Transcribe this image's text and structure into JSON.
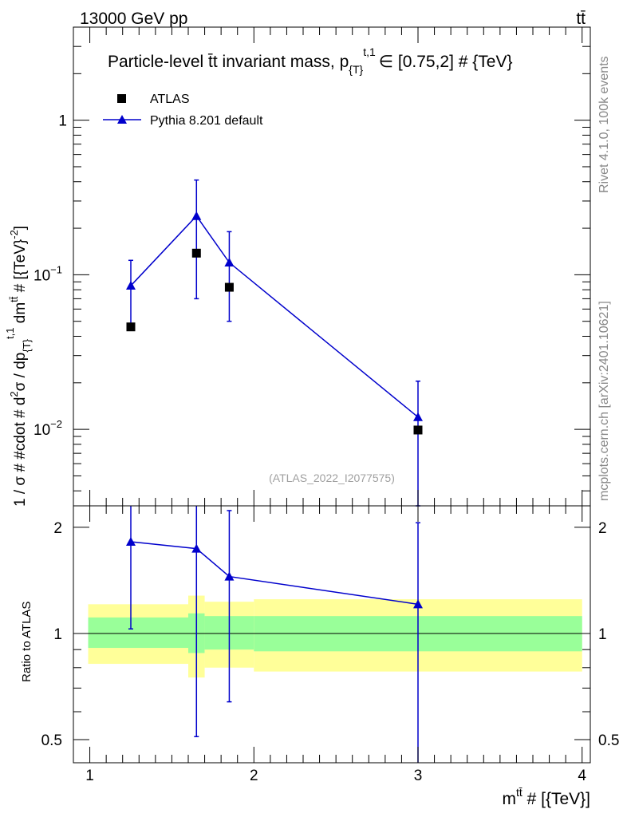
{
  "header": {
    "energy_label": "13000 GeV pp",
    "process_label": "tt̄"
  },
  "side_labels": {
    "rivet": "Rivet 4.1.0,  100k events",
    "mcplots": "mcplots.cern.ch [arXiv:2401.10621]"
  },
  "chart_data": [
    {
      "type": "scatter",
      "role": "main",
      "title": "Particle-level t̄t invariant mass, p_{T}^{t,1} ∈ [0.75,2] # {TeV}",
      "title_parts": {
        "main": "Particle-level t̄t invariant mass, p",
        "sub": "{T}",
        "sup": "t,1",
        "rest": "∈ [0.75,2] # {TeV}"
      },
      "ylabel": "1 / σ # #cdot # d²σ / dp_{T}^{t,1} dm^{tt̄} # [{TeV}⁻²]",
      "ylabel_parts": {
        "a": "1 / σ # #cdot # d",
        "a_sup": "2",
        "b": "σ / dp",
        "b_sub": "{T}",
        "b_sup": "t,1",
        "c": " dm",
        "c_sup": "tt̄",
        "d": " # [{TeV}",
        "d_sup": "-2",
        "e": "]"
      },
      "yscale": "log",
      "ylim": [
        0.0032,
        4.0
      ],
      "xlim": [
        0.9,
        4.05
      ],
      "y_ticks": [
        {
          "value": 1,
          "base": "1",
          "exp": ""
        },
        {
          "value": 0.1,
          "base": "10",
          "exp": "−1"
        },
        {
          "value": 0.01,
          "base": "10",
          "exp": "−2"
        }
      ],
      "series": [
        {
          "name": "ATLAS",
          "marker": "square",
          "color": "#000000",
          "points": [
            {
              "x": 1.25,
              "y": 0.046
            },
            {
              "x": 1.65,
              "y": 0.138
            },
            {
              "x": 1.85,
              "y": 0.083
            },
            {
              "x": 3.0,
              "y": 0.0099
            }
          ]
        },
        {
          "name": "Pythia 8.201 default",
          "marker": "triangle",
          "color": "#0000cc",
          "line": true,
          "points": [
            {
              "x": 1.25,
              "y": 0.085,
              "ylo": 0.046,
              "yhi": 0.124
            },
            {
              "x": 1.65,
              "y": 0.24,
              "ylo": 0.07,
              "yhi": 0.41
            },
            {
              "x": 1.85,
              "y": 0.12,
              "ylo": 0.05,
              "yhi": 0.19
            },
            {
              "x": 3.0,
              "y": 0.012,
              "ylo": 0.0032,
              "yhi": 0.0205
            }
          ]
        }
      ],
      "annotation": "(ATLAS_2022_I2077575)"
    },
    {
      "type": "scatter",
      "role": "ratio",
      "ylabel": "Ratio to ATLAS",
      "xlabel": "m^{tt̄} # [{TeV}]",
      "xlabel_parts": {
        "a": "m",
        "sup": "tt̄",
        "b": " # [{TeV}]"
      },
      "yscale": "log",
      "ylim": [
        0.43,
        2.3
      ],
      "xlim": [
        0.9,
        4.05
      ],
      "x_ticks": [
        1,
        2,
        3,
        4
      ],
      "y_ticks": [
        0.5,
        1,
        2
      ],
      "bands": [
        {
          "x0": 0.9,
          "x1": 1.6,
          "g_lo": 0.91,
          "g_hi": 1.11,
          "y_lo": 0.82,
          "y_hi": 1.21
        },
        {
          "x0": 1.6,
          "x1": 1.7,
          "g_lo": 0.88,
          "g_hi": 1.14,
          "y_lo": 0.75,
          "y_hi": 1.28
        },
        {
          "x0": 1.7,
          "x1": 2.0,
          "g_lo": 0.9,
          "g_hi": 1.12,
          "y_lo": 0.8,
          "y_hi": 1.23
        },
        {
          "x0": 2.0,
          "x1": 4.05,
          "g_lo": 0.89,
          "g_hi": 1.12,
          "y_lo": 0.78,
          "y_hi": 1.25
        }
      ],
      "reference_line": 1.0,
      "series": [
        {
          "name": "Pythia 8.201 default",
          "color": "#0000cc",
          "points": [
            {
              "x": 1.25,
              "y": 1.82,
              "ylo": 1.03,
              "yhi": 2.3
            },
            {
              "x": 1.65,
              "y": 1.74,
              "ylo": 0.51,
              "yhi": 2.3
            },
            {
              "x": 1.85,
              "y": 1.45,
              "ylo": 0.64,
              "yhi": 2.23
            },
            {
              "x": 3.0,
              "y": 1.21,
              "ylo": 0.43,
              "yhi": 2.06
            }
          ]
        }
      ]
    }
  ]
}
